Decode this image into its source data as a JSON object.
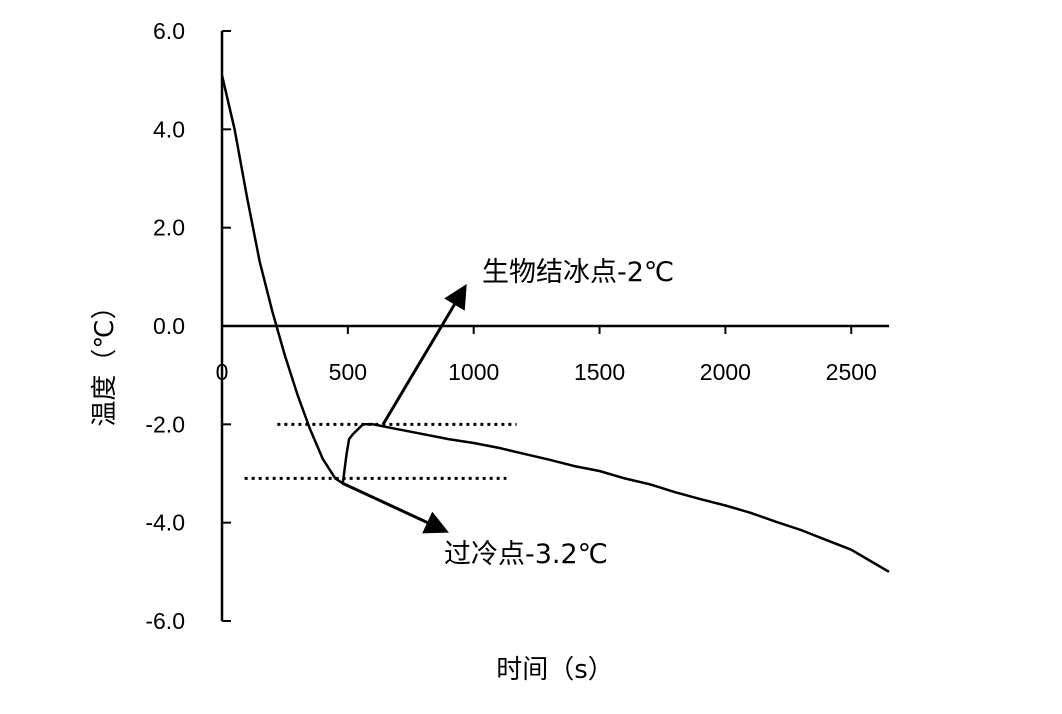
{
  "chart_data": {
    "type": "line",
    "xlabel": "时间（s）",
    "ylabel": "温度（℃）",
    "xlim": [
      0,
      2650
    ],
    "ylim": [
      -6,
      6
    ],
    "x_ticks": [
      0,
      500,
      1000,
      1500,
      2000,
      2500
    ],
    "x_tick_labels": [
      "0",
      "500",
      "1000",
      "1500",
      "2000",
      "2500"
    ],
    "y_ticks": [
      6,
      4,
      2,
      0,
      -2,
      -4,
      -6
    ],
    "y_tick_labels": [
      "6.0",
      "4.0",
      "2.0",
      "0.0",
      "-2.0",
      "-4.0",
      "-6.0"
    ],
    "grid": false,
    "legend": "none",
    "series": [
      {
        "x": [
          0,
          50,
          100,
          150,
          200,
          250,
          300,
          350,
          400,
          450,
          480,
          495,
          505,
          520,
          560,
          600,
          650,
          700,
          800,
          900,
          1000,
          1100,
          1200,
          1300,
          1400,
          1500,
          1600,
          1700,
          1800,
          1900,
          2000,
          2100,
          2200,
          2300,
          2400,
          2500,
          2600,
          2650
        ],
        "y": [
          5.1,
          4.0,
          2.6,
          1.3,
          0.3,
          -0.6,
          -1.4,
          -2.1,
          -2.7,
          -3.1,
          -3.2,
          -2.6,
          -2.3,
          -2.2,
          -2.0,
          -2.0,
          -2.05,
          -2.1,
          -2.2,
          -2.3,
          -2.38,
          -2.48,
          -2.6,
          -2.72,
          -2.85,
          -2.95,
          -3.1,
          -3.22,
          -3.38,
          -3.52,
          -3.65,
          -3.8,
          -3.98,
          -4.15,
          -4.35,
          -4.55,
          -4.85,
          -5.0
        ]
      }
    ],
    "reference_lines": [
      {
        "y": -2.0,
        "x_start": 220,
        "x_end": 1170
      },
      {
        "y": -3.1,
        "x_start": 90,
        "x_end": 1130
      }
    ],
    "annotations": [
      {
        "text": "生物结冰点-2℃",
        "x_from": 640,
        "y_from": -2.0,
        "x_to": 960,
        "y_to": 0.75
      },
      {
        "text": "过冷点-3.2℃",
        "x_from": 480,
        "y_from": -3.2,
        "x_to": 880,
        "y_to": -4.15
      }
    ]
  }
}
